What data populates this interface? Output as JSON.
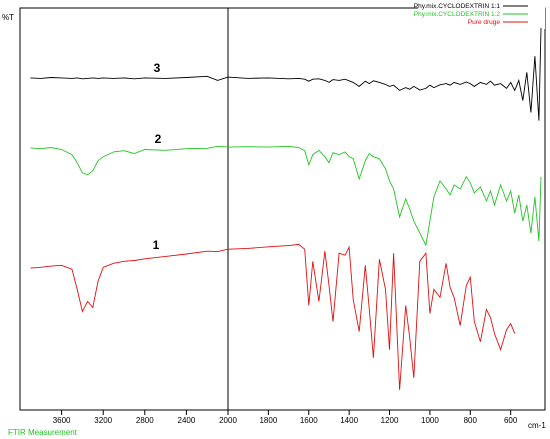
{
  "chart_data": {
    "type": "line",
    "y_label": "%T",
    "x_label": "cm-1",
    "footer": "FTIR Measurement",
    "xlim": [
      4000,
      430
    ],
    "ylim": [
      0,
      100
    ],
    "x_scale_break": 2000,
    "xticks": [
      3600,
      3200,
      2800,
      2400,
      2000,
      1800,
      1600,
      1400,
      1200,
      1000,
      800,
      600
    ],
    "annotations": [
      "3",
      "2",
      "1"
    ],
    "x": [
      3900,
      3800,
      3700,
      3600,
      3500,
      3450,
      3400,
      3350,
      3300,
      3250,
      3200,
      3100,
      3000,
      2900,
      2800,
      2600,
      2400,
      2200,
      2100,
      2000,
      1900,
      1800,
      1700,
      1650,
      1620,
      1600,
      1580,
      1550,
      1520,
      1500,
      1480,
      1450,
      1420,
      1400,
      1380,
      1350,
      1320,
      1300,
      1280,
      1250,
      1220,
      1200,
      1180,
      1150,
      1120,
      1100,
      1080,
      1050,
      1020,
      1000,
      980,
      950,
      920,
      900,
      880,
      850,
      820,
      800,
      780,
      750,
      720,
      700,
      680,
      650,
      620,
      600,
      580,
      560,
      540,
      520,
      500,
      480,
      460,
      450
    ],
    "series": [
      {
        "name": "Phy.mix.CYCLODEXTRIN 1:1",
        "color": "#000000",
        "values": [
          82.6,
          82.5,
          82.7,
          82.6,
          82.5,
          82.6,
          82.4,
          82.5,
          82.6,
          82.5,
          82.6,
          82.5,
          82.6,
          82.4,
          82.6,
          82.5,
          82.7,
          83.0,
          82.0,
          82.8,
          82.5,
          82.6,
          82.4,
          82.5,
          82.3,
          81.8,
          82.3,
          82.4,
          82.0,
          81.5,
          82.2,
          82.0,
          82.3,
          81.9,
          81.5,
          80.5,
          81.8,
          81.2,
          81.9,
          81.5,
          81.0,
          80.5,
          80.8,
          79.5,
          80.2,
          79.8,
          80.5,
          79.6,
          80.0,
          80.8,
          80.2,
          80.9,
          81.2,
          80.8,
          81.5,
          81.0,
          81.6,
          81.2,
          80.5,
          81.5,
          81.0,
          81.8,
          80.8,
          81.2,
          80.0,
          81.5,
          79.5,
          82.0,
          77.0,
          84.0,
          74.0,
          88.0,
          72.0,
          95.0
        ]
      },
      {
        "name": "Phy.mix.CYCLODEXTRIN 1:2",
        "color": "#22c422",
        "values": [
          65.2,
          65.0,
          65.3,
          64.8,
          63.5,
          61.5,
          59.0,
          58.5,
          59.5,
          62.0,
          63.0,
          64.2,
          64.5,
          63.8,
          64.8,
          64.6,
          65.0,
          65.1,
          65.6,
          65.4,
          65.5,
          65.4,
          65.6,
          65.3,
          64.5,
          61.0,
          63.5,
          64.6,
          63.0,
          61.5,
          64.0,
          63.5,
          64.2,
          63.0,
          62.5,
          57.5,
          62.0,
          63.8,
          63.0,
          62.5,
          60.0,
          57.0,
          55.0,
          48.0,
          52.5,
          50.0,
          47.0,
          44.0,
          41.0,
          47.0,
          53.0,
          57.0,
          55.0,
          53.5,
          56.0,
          55.0,
          58.0,
          56.5,
          54.0,
          55.5,
          52.0,
          54.5,
          51.0,
          56.0,
          52.0,
          54.5,
          49.0,
          53.5,
          47.0,
          51.0,
          44.0,
          53.0,
          42.0,
          58.0
        ]
      },
      {
        "name": "Pure druge",
        "color": "#e01010",
        "values": [
          35.3,
          35.5,
          35.8,
          36.0,
          35.0,
          30.0,
          24.5,
          27.0,
          25.5,
          32.0,
          35.5,
          36.5,
          37.0,
          37.2,
          37.6,
          38.2,
          38.8,
          39.5,
          39.4,
          40.0,
          40.2,
          40.6,
          40.9,
          41.2,
          40.0,
          26.0,
          37.0,
          27.0,
          39.5,
          31.0,
          22.0,
          39.0,
          38.5,
          40.5,
          27.5,
          19.5,
          36.0,
          25.0,
          13.0,
          37.5,
          30.0,
          15.0,
          39.0,
          5.0,
          26.0,
          18.0,
          8.0,
          37.0,
          39.0,
          24.0,
          30.0,
          28.0,
          36.5,
          30.5,
          28.0,
          21.0,
          31.0,
          33.0,
          22.0,
          17.0,
          25.0,
          23.0,
          19.0,
          15.0,
          20.0,
          21.5,
          19.0,
          null,
          null,
          null,
          null,
          null,
          null,
          null
        ]
      }
    ]
  }
}
